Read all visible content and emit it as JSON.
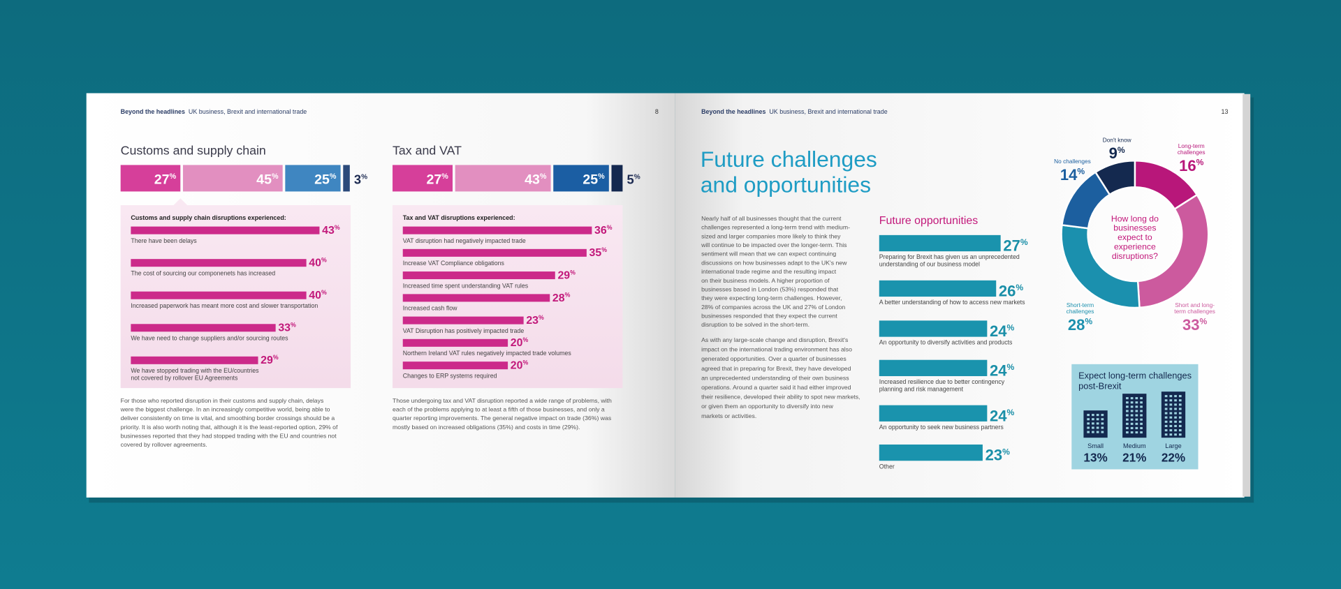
{
  "left_page": {
    "header_bold": "Beyond the headlines",
    "header_text": "UK business, Brexit and international trade",
    "page_number": "8"
  },
  "right_page": {
    "header_bold": "Beyond the headlines",
    "header_text": "UK business, Brexit and international trade",
    "page_number": "13"
  },
  "percent_sign": "%",
  "customs": {
    "title": "Customs and supply chain",
    "summary": {
      "values": [
        27,
        45,
        25,
        3
      ],
      "colors": [
        "#d63f9a",
        "#e28fc0",
        "#3f86c1",
        "#2b4a7a"
      ]
    },
    "panel_title": "Customs and supply chain disruptions experienced:",
    "categories": [
      [
        "There have been delays"
      ],
      [
        "The cost of sourcing our componenets has increased"
      ],
      [
        "Increased paperwork has meant more cost and slower transportation"
      ],
      [
        "We have need to change suppliers and/or sourcing routes"
      ],
      [
        "We have stopped trading with the EU/countries",
        "not covered by rollover EU Agreements"
      ]
    ],
    "values": [
      43,
      40,
      40,
      33,
      29
    ],
    "color": "#cc2a8a",
    "body": [
      "For those who reported disruption in their customs and supply chain, delays",
      "were the biggest challenge. In an increasingly competitive world, being able to",
      "deliver consistently on time is vital, and smoothing border crossings should be a",
      "priority. It is also worth noting that, although it is the least-reported option, 29% of",
      "businesses reported that they had stopped trading with the EU and countries not",
      "covered by rollover agreements."
    ]
  },
  "tax": {
    "title": "Tax and VAT",
    "summary": {
      "values": [
        27,
        43,
        25,
        5
      ],
      "colors": [
        "#d63f9a",
        "#e28fc0",
        "#1b5ea3",
        "#14284f"
      ]
    },
    "panel_title": "Tax and VAT disruptions experienced:",
    "categories": [
      [
        "VAT disruption had negatively impacted trade"
      ],
      [
        "Increase VAT Compliance obligations"
      ],
      [
        "Increased time spent understanding VAT rules"
      ],
      [
        "Increased cash flow"
      ],
      [
        "VAT Disruption has positively impacted trade"
      ],
      [
        "Northern Ireland VAT rules negatively impacted trade volumes"
      ],
      [
        "Changes to ERP systems required"
      ]
    ],
    "values": [
      36,
      35,
      29,
      28,
      23,
      20,
      20
    ],
    "color": "#cc2a8a",
    "body": [
      "Those undergoing tax and VAT disruption reported a wide range of problems, with",
      "each of the problems applying to at least a fifth of those businesses, and only a",
      "quarter reporting improvements. The general negative impact on trade (36%) was",
      "mostly based on increased obligations (35%) and costs in time (29%)."
    ]
  },
  "future": {
    "title": [
      "Future challenges",
      "and opportunities"
    ],
    "body": [
      [
        "Nearly half of all businesses thought that the current",
        "challenges represented a long-term trend with medium-",
        "sized and larger companies more likely to think they",
        "will continue to be impacted over the longer-term. This",
        "sentiment will mean that we can expect continuing",
        "discussions on how businesses adapt to the UK's new",
        "international trade regime and the resulting impact",
        "on their business models. A higher proportion of",
        "businesses based in London (53%) responded that",
        "they were expecting long-term challenges. However,",
        "28% of companies across the UK and 27% of London",
        "businesses responded that they expect the current",
        "disruption to be solved in the short-term."
      ],
      [
        "As with any large-scale change and disruption, Brexit's",
        "impact on the international trading environment has also",
        "generated opportunities. Over a quarter of businesses",
        "agreed that in preparing for Brexit, they have developed",
        "an unprecedented understanding of their own business",
        "operations. Around a quarter said it had either improved",
        "their resilience, developed their ability to spot new markets,",
        "or given them an opportunity to diversify into new",
        "markets or activities."
      ]
    ]
  },
  "opportunities": {
    "title": "Future opportunities",
    "categories": [
      [
        "Preparing for Brexit has given us an unprecedented",
        "understanding of our business model"
      ],
      [
        "A better understanding of how to access new markets"
      ],
      [
        "An opportunity to diversify activities and products"
      ],
      [
        "Increased resilience due to better contingency",
        "planning and risk management"
      ],
      [
        "An opportunity to seek new business partners"
      ],
      [
        "Other"
      ]
    ],
    "values": [
      27,
      26,
      24,
      24,
      24,
      23
    ],
    "color": "#1a93ad"
  },
  "disruption_duration": {
    "title": [
      "How long do",
      "businesses",
      "expect to",
      "experience",
      "disruptions?"
    ],
    "categories": [
      [
        "Long-term",
        "challenges"
      ],
      [
        "Short and long-",
        "term challenges"
      ],
      [
        "Short-term",
        "challenges"
      ],
      [
        "No challenges"
      ],
      [
        "Don't know"
      ]
    ],
    "values": [
      16,
      33,
      28,
      14,
      9
    ],
    "colors": [
      "#b8177a",
      "#cc5a9e",
      "#1b90ae",
      "#1c5f9f",
      "#14294f"
    ]
  },
  "long_term_by_size": {
    "title": [
      "Expect long-term challenges",
      "post-Brexit"
    ],
    "categories": [
      "Small",
      "Medium",
      "Large"
    ],
    "values": [
      13,
      21,
      22
    ],
    "value_labels": [
      "13%",
      "21%",
      "22%"
    ],
    "color": "#14294f"
  }
}
